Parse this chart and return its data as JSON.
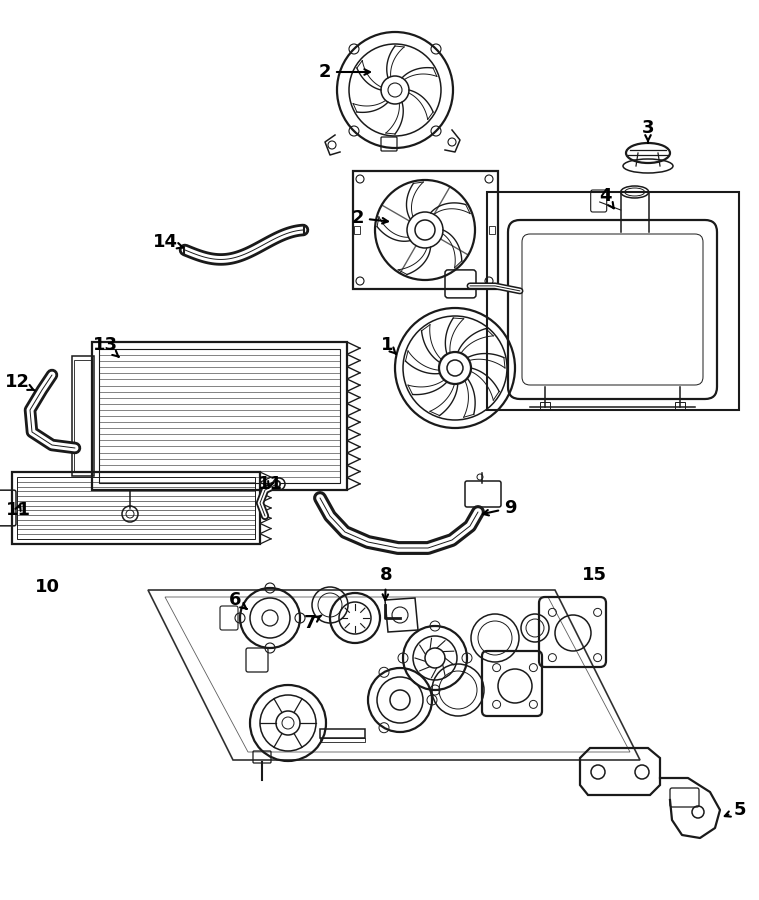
{
  "bg_color": "#ffffff",
  "line_color": "#1a1a1a",
  "fig_width": 7.59,
  "fig_height": 9.0,
  "lw": 1.1,
  "lw2": 1.6,
  "label_fs": 13
}
